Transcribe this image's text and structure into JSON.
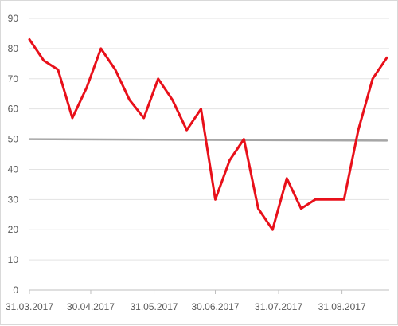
{
  "chart_data": {
    "type": "line",
    "title": "",
    "xlabel": "",
    "ylabel": "",
    "ylim": [
      0,
      90
    ],
    "yticks": [
      "0",
      "10",
      "20",
      "30",
      "40",
      "50",
      "60",
      "70",
      "80",
      "90"
    ],
    "xticks": [
      "31.03.2017",
      "30.04.2017",
      "31.05.2017",
      "30.06.2017",
      "31.07.2017",
      "31.08.2017"
    ],
    "grid": true,
    "legend": "none",
    "series": [
      {
        "color": "#e8101a",
        "x": [
          "2017-03-31",
          "2017-04-07",
          "2017-04-14",
          "2017-04-21",
          "2017-04-28",
          "2017-05-05",
          "2017-05-12",
          "2017-05-19",
          "2017-05-26",
          "2017-06-02",
          "2017-06-09",
          "2017-06-16",
          "2017-06-23",
          "2017-06-30",
          "2017-07-07",
          "2017-07-14",
          "2017-07-21",
          "2017-07-28",
          "2017-08-04",
          "2017-08-11",
          "2017-08-18",
          "2017-08-25",
          "2017-09-01",
          "2017-09-08",
          "2017-09-15",
          "2017-09-22"
        ],
        "values": [
          83,
          76,
          73,
          57,
          67,
          80,
          73,
          63,
          57,
          70,
          63,
          53,
          60,
          30,
          43,
          50,
          27,
          20,
          37,
          27,
          30,
          30,
          30,
          53,
          70,
          77
        ]
      },
      {
        "color": "#a6a6a6",
        "x": [
          "2017-03-31",
          "2017-09-22"
        ],
        "values": [
          50,
          49.5
        ]
      }
    ]
  }
}
